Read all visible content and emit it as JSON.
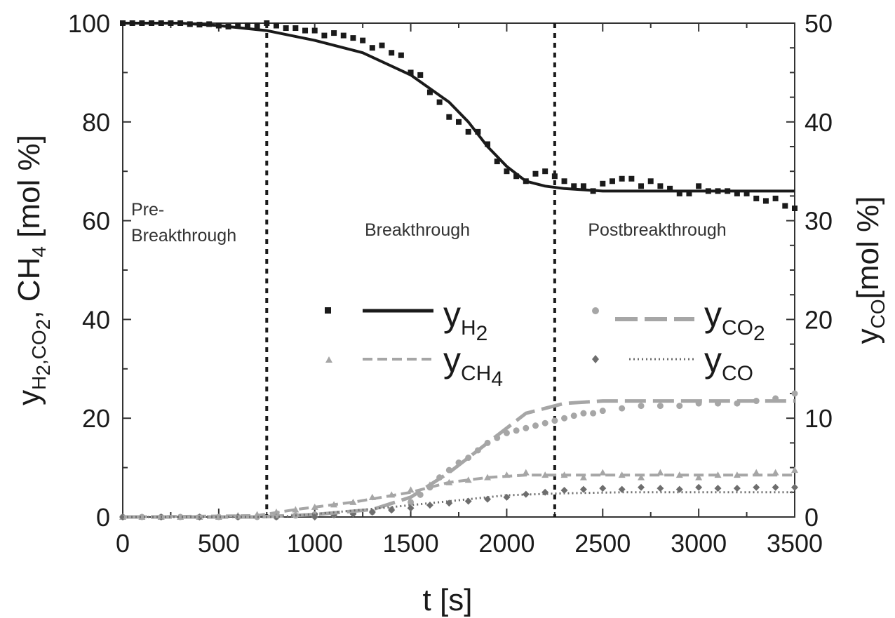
{
  "chart_data": {
    "type": "line",
    "title": "",
    "xlabel": "t [s]",
    "ylabel_left": {
      "main": "y",
      "sub1": "H",
      "sub2": "2",
      "rest1": ",CO",
      "sub3": "2",
      "rest2": ", CH",
      "sub4": "4",
      "unit": " [mol %]"
    },
    "ylabel_right": {
      "main": "y",
      "sub": "CO",
      "unit": "[mol %]"
    },
    "xlim": [
      0,
      3500
    ],
    "ylim_left": [
      0,
      100
    ],
    "ylim_right": [
      0,
      50
    ],
    "xticks": [
      0,
      500,
      1000,
      1500,
      2000,
      2500,
      3000,
      3500
    ],
    "yticks_left": [
      0,
      20,
      40,
      60,
      80,
      100
    ],
    "yticks_right": [
      0,
      10,
      20,
      30,
      40,
      50
    ],
    "regions": {
      "boundaries": [
        750,
        2250
      ],
      "pre_line1": "Pre-",
      "pre_line2": "Breakthrough",
      "break": "Breakthrough",
      "post": "Postbreakthrough"
    },
    "legend": {
      "h2": {
        "main": "y",
        "sub1": "H",
        "sub2": "2"
      },
      "co2": {
        "main": "y",
        "sub1": "CO",
        "sub2": "2"
      },
      "ch4": {
        "main": "y",
        "sub1": "CH",
        "sub2": "4"
      },
      "co": {
        "main": "y",
        "sub1": "CO",
        "sub2": ""
      }
    },
    "colors": {
      "h2": "#1a1a1a",
      "co2": "#a6a6a6",
      "ch4": "#a6a6a6",
      "co": "#6e6e6e",
      "boundary": "#1a1a1a"
    },
    "series_sim": [
      {
        "name": "y_H2 model",
        "axis": "left",
        "x": [
          0,
          300,
          500,
          750,
          1000,
          1250,
          1500,
          1700,
          1800,
          1900,
          2000,
          2100,
          2200,
          2300,
          2500,
          3000,
          3500
        ],
        "y": [
          100,
          100,
          99.5,
          98.5,
          96.5,
          94,
          89.5,
          84,
          80,
          75,
          71,
          68,
          67,
          66.5,
          66,
          66,
          66
        ]
      },
      {
        "name": "y_CO2 model",
        "axis": "left",
        "x": [
          0,
          700,
          1000,
          1300,
          1500,
          1700,
          1900,
          2100,
          2300,
          2500,
          3000,
          3500
        ],
        "y": [
          0,
          0,
          0.5,
          1.5,
          4,
          9,
          15,
          21,
          23,
          23.5,
          23.5,
          23.5
        ]
      },
      {
        "name": "y_CH4 model",
        "axis": "left",
        "x": [
          0,
          700,
          900,
          1200,
          1500,
          1700,
          1900,
          2100,
          2300,
          3000,
          3500
        ],
        "y": [
          0,
          0.3,
          1.5,
          3,
          5,
          7,
          8,
          8.5,
          8.5,
          8.5,
          8.5
        ]
      },
      {
        "name": "y_CO model",
        "axis": "right",
        "x": [
          0,
          800,
          1000,
          1400,
          1700,
          2000,
          2300,
          2600,
          3000,
          3500
        ],
        "y": [
          0,
          0,
          0.3,
          1,
          1.6,
          2.2,
          2.4,
          2.5,
          2.5,
          2.5
        ]
      }
    ],
    "series_exp": [
      {
        "name": "y_H2 experiment",
        "axis": "left",
        "x": [
          0,
          50,
          100,
          150,
          200,
          250,
          300,
          350,
          400,
          450,
          500,
          550,
          600,
          650,
          700,
          750,
          800,
          850,
          900,
          950,
          1000,
          1050,
          1100,
          1150,
          1200,
          1250,
          1300,
          1350,
          1400,
          1450,
          1500,
          1550,
          1600,
          1650,
          1700,
          1750,
          1800,
          1850,
          1900,
          1950,
          2000,
          2050,
          2100,
          2150,
          2200,
          2250,
          2300,
          2350,
          2400,
          2450,
          2500,
          2550,
          2600,
          2650,
          2700,
          2750,
          2800,
          2850,
          2900,
          2950,
          3000,
          3050,
          3100,
          3150,
          3200,
          3250,
          3300,
          3350,
          3400,
          3450,
          3500
        ],
        "y": [
          100,
          100,
          100,
          100,
          100,
          100,
          100,
          99.8,
          99.7,
          99.8,
          99.5,
          99.3,
          99.5,
          99.5,
          99.5,
          100,
          99.5,
          99,
          99,
          98.5,
          98.5,
          97.5,
          98,
          97.5,
          97,
          96.5,
          95,
          95.5,
          94,
          93.5,
          90,
          89.5,
          86,
          84,
          81,
          80,
          78,
          78,
          75.5,
          72,
          70,
          69,
          68,
          69.5,
          70,
          69,
          68,
          67,
          67,
          66,
          67.5,
          68,
          68.5,
          68.5,
          67,
          68,
          67,
          66.5,
          65.5,
          65.5,
          67,
          66,
          66,
          66,
          65.5,
          65.5,
          64.5,
          64,
          64.5,
          63,
          62.5
        ]
      },
      {
        "name": "y_CO2 experiment",
        "axis": "left",
        "x": [
          0,
          100,
          200,
          300,
          400,
          500,
          600,
          700,
          800,
          900,
          1000,
          1100,
          1200,
          1300,
          1400,
          1500,
          1550,
          1600,
          1650,
          1700,
          1750,
          1800,
          1850,
          1900,
          1950,
          2000,
          2050,
          2100,
          2150,
          2200,
          2250,
          2300,
          2350,
          2400,
          2450,
          2500,
          2600,
          2700,
          2800,
          2900,
          3000,
          3100,
          3200,
          3300,
          3400,
          3500
        ],
        "y": [
          0,
          0,
          0,
          0,
          0,
          0,
          0,
          0,
          0,
          0.3,
          0.5,
          0.5,
          0.8,
          1,
          1.5,
          3,
          4.5,
          6,
          8,
          9.5,
          11,
          12,
          13.5,
          15,
          16,
          17,
          17.5,
          18,
          18.5,
          19,
          19.5,
          20,
          20.5,
          21,
          21,
          21.5,
          22,
          22.5,
          22.5,
          22.5,
          23,
          23,
          23,
          23.5,
          24,
          25
        ]
      },
      {
        "name": "y_CH4 experiment",
        "axis": "left",
        "x": [
          0,
          100,
          200,
          300,
          400,
          500,
          600,
          700,
          800,
          900,
          1000,
          1100,
          1200,
          1300,
          1400,
          1500,
          1600,
          1700,
          1800,
          1900,
          2000,
          2100,
          2200,
          2300,
          2400,
          2500,
          2600,
          2700,
          2800,
          2900,
          3000,
          3100,
          3200,
          3300,
          3400,
          3500
        ],
        "y": [
          0,
          0,
          0,
          0,
          0,
          0,
          0.3,
          0.5,
          1,
          1.5,
          2,
          2.5,
          3,
          4,
          4.5,
          5.5,
          6.5,
          7,
          7.5,
          8,
          8.5,
          9,
          8.5,
          8.5,
          8,
          9,
          8.5,
          8,
          9,
          8.5,
          8,
          8.5,
          8.5,
          9,
          9,
          9.5
        ]
      },
      {
        "name": "y_CO experiment",
        "axis": "right",
        "x": [
          0,
          200,
          400,
          600,
          800,
          1000,
          1100,
          1200,
          1300,
          1400,
          1500,
          1600,
          1700,
          1800,
          1900,
          2000,
          2100,
          2200,
          2300,
          2400,
          2500,
          2600,
          2700,
          2800,
          2900,
          3000,
          3100,
          3200,
          3300,
          3400,
          3500
        ],
        "y": [
          0,
          0,
          0,
          0,
          0,
          0,
          0.2,
          0.3,
          0.5,
          0.7,
          0.9,
          1.2,
          1.4,
          1.6,
          1.8,
          2,
          2.3,
          2.5,
          2.7,
          2.8,
          2.9,
          2.8,
          3,
          2.9,
          2.8,
          3,
          2.9,
          2.9,
          3,
          3,
          3
        ]
      }
    ]
  }
}
